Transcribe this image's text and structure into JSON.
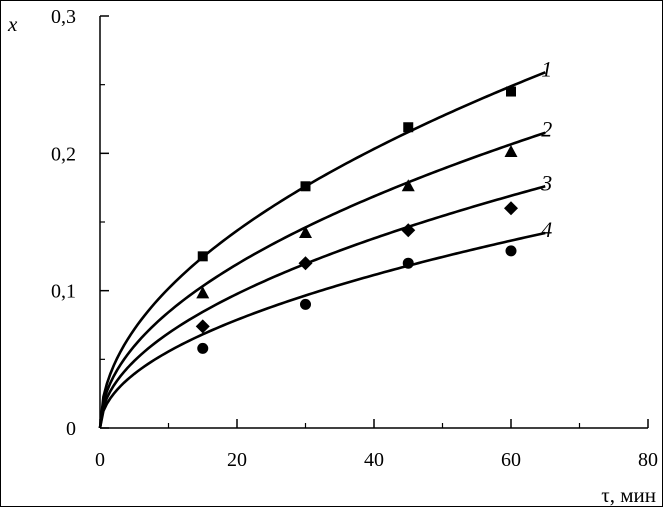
{
  "chart_data": {
    "type": "line",
    "title": "",
    "xlabel": "τ, мин",
    "ylabel": "x",
    "xlim": [
      0,
      80
    ],
    "ylim": [
      0,
      0.3
    ],
    "x_ticks": [
      0,
      20,
      40,
      60,
      80
    ],
    "x_tick_labels": [
      "0",
      "20",
      "40",
      "60",
      "80"
    ],
    "y_ticks": [
      0,
      0.1,
      0.2,
      0.3
    ],
    "y_tick_labels": [
      "0",
      "0,1",
      "0,2",
      "0,3"
    ],
    "grid": false,
    "legend": "none",
    "series": [
      {
        "name": "1",
        "marker": "square",
        "points": [
          [
            15,
            0.125
          ],
          [
            30,
            0.176
          ],
          [
            45,
            0.219
          ],
          [
            60,
            0.245
          ]
        ],
        "fit_x": [
          0,
          65
        ],
        "fit_at_65": 0.259
      },
      {
        "name": "2",
        "marker": "triangle",
        "points": [
          [
            15,
            0.098
          ],
          [
            30,
            0.142
          ],
          [
            45,
            0.176
          ],
          [
            60,
            0.201
          ]
        ],
        "fit_x": [
          0,
          65
        ],
        "fit_at_65": 0.215
      },
      {
        "name": "3",
        "marker": "diamond",
        "points": [
          [
            15,
            0.074
          ],
          [
            30,
            0.12
          ],
          [
            45,
            0.144
          ],
          [
            60,
            0.16
          ]
        ],
        "fit_x": [
          0,
          65
        ],
        "fit_at_65": 0.176
      },
      {
        "name": "4",
        "marker": "circle",
        "points": [
          [
            15,
            0.058
          ],
          [
            30,
            0.09
          ],
          [
            45,
            0.12
          ],
          [
            60,
            0.129
          ]
        ],
        "fit_x": [
          0,
          65
        ],
        "fit_at_65": 0.142
      }
    ]
  }
}
